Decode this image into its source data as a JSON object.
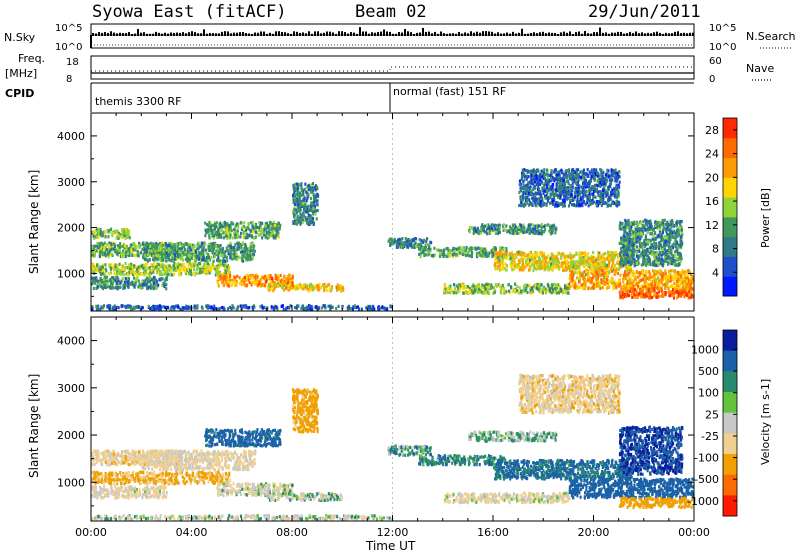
{
  "header": {
    "title_left": "Syowa East (fitACF)",
    "title_center": "Beam 02",
    "title_right": "29/Jun/2011"
  },
  "nsky_panel": {
    "left_label": "N.Sky",
    "right_label": "N.Search",
    "left_ticks": [
      "10^5",
      "10^0"
    ],
    "right_ticks": [
      "10^5",
      "10^0"
    ]
  },
  "freq_panel": {
    "left_label_line1": "Freq.",
    "left_label_line2": "[MHz]",
    "right_label": "Nave",
    "left_ticks": [
      "18",
      "8"
    ],
    "right_ticks": [
      "60",
      "0"
    ]
  },
  "cpid_panel": {
    "label": "CPID",
    "modes": [
      {
        "start_hour": 0,
        "text": "themis 3300 RF"
      },
      {
        "start_hour": 12,
        "text": "normal (fast) 151 RF"
      }
    ]
  },
  "colors": {
    "power_scale": [
      "#0018ff",
      "#1f4fc8",
      "#2f7a86",
      "#3f9a5a",
      "#8fd43a",
      "#ffd400",
      "#ff9a00",
      "#ff6a00",
      "#ff2a00"
    ],
    "velocity_scale": [
      "#0a1e9e",
      "#1b62a8",
      "#2a8a6e",
      "#62c43c",
      "#c8c8c8",
      "#f0d090",
      "#f0a000",
      "#ff6a00",
      "#ff1a00"
    ]
  },
  "chart_data": [
    {
      "type": "heatmap",
      "name": "power",
      "x_unit": "Time UT (hours)",
      "xlabel": "Time UT",
      "ylabel": "Slant Range [km]",
      "xlim": [
        0,
        24
      ],
      "ylim": [
        180,
        4500
      ],
      "x_ticks": [
        "00:00",
        "04:00",
        "08:00",
        "12:00",
        "16:00",
        "20:00",
        "00:00"
      ],
      "y_ticks": [
        1000,
        2000,
        3000,
        4000
      ],
      "colorbar": {
        "label": "Power [dB]",
        "ticks": [
          4,
          8,
          12,
          16,
          20,
          24,
          28
        ],
        "range": [
          0,
          30
        ]
      },
      "bands": [
        {
          "t0": 0.0,
          "t1": 3.6,
          "r0": 1400,
          "r1": 1700,
          "level": 13
        },
        {
          "t0": 0.0,
          "t1": 5.5,
          "r0": 1000,
          "r1": 1250,
          "level": 15
        },
        {
          "t0": 2.0,
          "t1": 6.5,
          "r0": 1300,
          "r1": 1700,
          "level": 11
        },
        {
          "t0": 0.0,
          "t1": 3.0,
          "r0": 700,
          "r1": 950,
          "level": 10
        },
        {
          "t0": 5.0,
          "t1": 8.0,
          "r0": 750,
          "r1": 1000,
          "level": 22
        },
        {
          "t0": 7.0,
          "t1": 10.0,
          "r0": 650,
          "r1": 800,
          "level": 19
        },
        {
          "t0": 4.5,
          "t1": 7.5,
          "r0": 1800,
          "r1": 2150,
          "level": 12
        },
        {
          "t0": 0.0,
          "t1": 1.5,
          "r0": 1800,
          "r1": 2000,
          "level": 14
        },
        {
          "t0": 11.8,
          "t1": 13.5,
          "r0": 1600,
          "r1": 1800,
          "level": 9
        },
        {
          "t0": 13.0,
          "t1": 16.5,
          "r0": 1400,
          "r1": 1600,
          "level": 12
        },
        {
          "t0": 14.0,
          "t1": 19.0,
          "r0": 600,
          "r1": 800,
          "level": 14
        },
        {
          "t0": 16.0,
          "t1": 21.5,
          "r0": 1100,
          "r1": 1500,
          "level": 18
        },
        {
          "t0": 19.0,
          "t1": 24.0,
          "r0": 700,
          "r1": 1100,
          "level": 21
        },
        {
          "t0": 21.0,
          "t1": 24.0,
          "r0": 500,
          "r1": 700,
          "level": 26
        },
        {
          "t0": 15.0,
          "t1": 18.5,
          "r0": 1900,
          "r1": 2100,
          "level": 10
        },
        {
          "t0": 8.0,
          "t1": 9.0,
          "r0": 2100,
          "r1": 3000,
          "level": 9
        },
        {
          "t0": 0.0,
          "t1": 12.0,
          "r0": 250,
          "r1": 330,
          "level": 6
        },
        {
          "t0": 17.0,
          "t1": 21.0,
          "r0": 2500,
          "r1": 3300,
          "level": 7
        },
        {
          "t0": 21.0,
          "t1": 23.5,
          "r0": 1200,
          "r1": 2200,
          "level": 10
        }
      ]
    },
    {
      "type": "heatmap",
      "name": "velocity",
      "x_unit": "Time UT (hours)",
      "xlabel": "Time UT",
      "ylabel": "Slant Range [km]",
      "xlim": [
        0,
        24
      ],
      "ylim": [
        180,
        4500
      ],
      "x_ticks": [
        "00:00",
        "04:00",
        "08:00",
        "12:00",
        "16:00",
        "20:00",
        "00:00"
      ],
      "y_ticks": [
        1000,
        2000,
        3000,
        4000
      ],
      "colorbar": {
        "label": "Velocity [m s-1]",
        "ticks": [
          "1000",
          "500",
          "100",
          "25",
          "-25",
          "-100",
          "-500",
          "-1000"
        ]
      },
      "bands": [
        {
          "t0": 0.0,
          "t1": 3.6,
          "r0": 1400,
          "r1": 1700,
          "level": -60
        },
        {
          "t0": 0.0,
          "t1": 5.5,
          "r0": 1000,
          "r1": 1250,
          "level": -120
        },
        {
          "t0": 2.0,
          "t1": 6.5,
          "r0": 1300,
          "r1": 1700,
          "level": -40
        },
        {
          "t0": 0.0,
          "t1": 3.0,
          "r0": 700,
          "r1": 950,
          "level": -30
        },
        {
          "t0": 5.0,
          "t1": 8.0,
          "r0": 750,
          "r1": 1000,
          "level": -10
        },
        {
          "t0": 7.0,
          "t1": 10.0,
          "r0": 650,
          "r1": 800,
          "level": 10
        },
        {
          "t0": 4.5,
          "t1": 7.5,
          "r0": 1800,
          "r1": 2150,
          "level": 150
        },
        {
          "t0": 11.8,
          "t1": 13.5,
          "r0": 1600,
          "r1": 1800,
          "level": 60
        },
        {
          "t0": 13.0,
          "t1": 16.5,
          "r0": 1400,
          "r1": 1600,
          "level": 80
        },
        {
          "t0": 14.0,
          "t1": 19.0,
          "r0": 600,
          "r1": 800,
          "level": -20
        },
        {
          "t0": 16.0,
          "t1": 21.5,
          "r0": 1100,
          "r1": 1500,
          "level": 120
        },
        {
          "t0": 19.0,
          "t1": 24.0,
          "r0": 700,
          "r1": 1100,
          "level": 300
        },
        {
          "t0": 21.0,
          "t1": 24.0,
          "r0": 500,
          "r1": 700,
          "level": -400
        },
        {
          "t0": 15.0,
          "t1": 18.5,
          "r0": 1900,
          "r1": 2100,
          "level": 40
        },
        {
          "t0": 8.0,
          "t1": 9.0,
          "r0": 2100,
          "r1": 3000,
          "level": -150
        },
        {
          "t0": 0.0,
          "t1": 12.0,
          "r0": 250,
          "r1": 330,
          "level": 0
        },
        {
          "t0": 17.0,
          "t1": 21.0,
          "r0": 2500,
          "r1": 3300,
          "level": -60
        },
        {
          "t0": 21.0,
          "t1": 23.5,
          "r0": 1200,
          "r1": 2200,
          "level": 500
        }
      ]
    }
  ]
}
